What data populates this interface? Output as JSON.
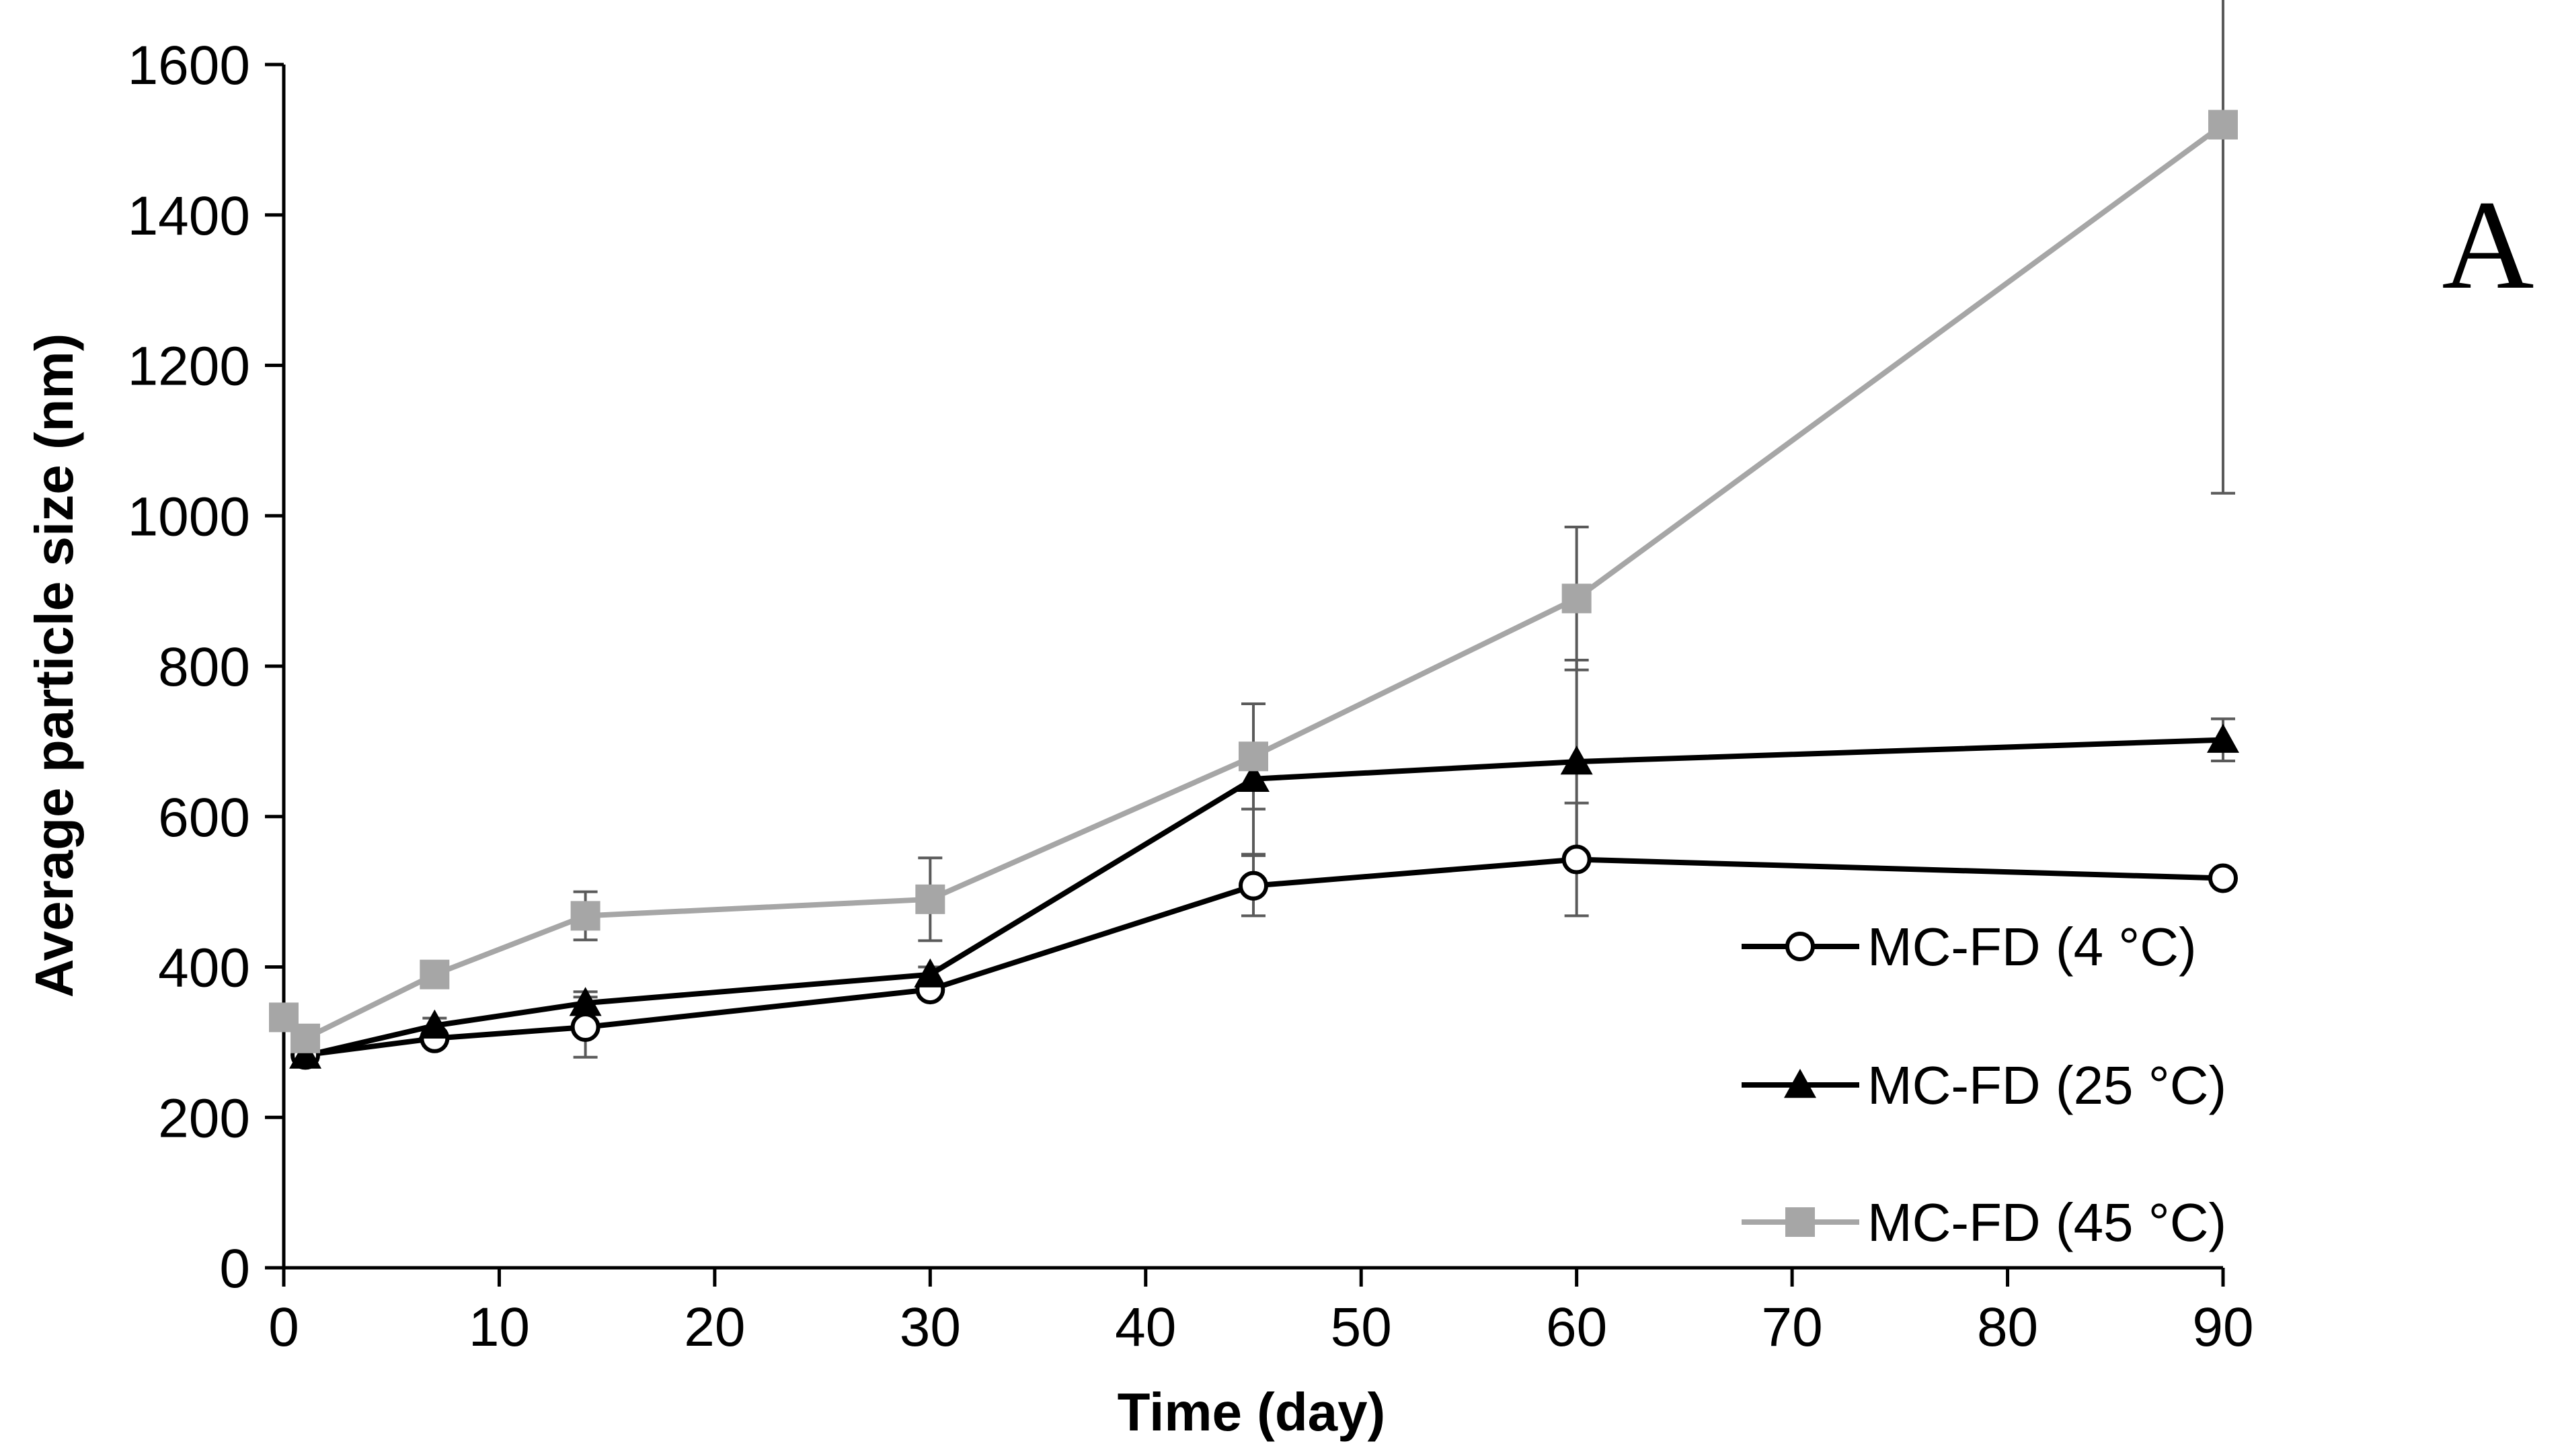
{
  "chart_data": {
    "type": "line",
    "panel_label": "A",
    "xlabel": "Time (day)",
    "ylabel": "Average particle size (nm)",
    "xlim": [
      0,
      90
    ],
    "ylim": [
      0,
      1600
    ],
    "xticks": [
      0,
      10,
      20,
      30,
      40,
      50,
      60,
      70,
      80,
      90
    ],
    "yticks": [
      0,
      200,
      400,
      600,
      800,
      1000,
      1200,
      1400,
      1600
    ],
    "grid": false,
    "legend_position": "bottom-right",
    "series": [
      {
        "name": "MC-FD (4 °C)",
        "color": "#000000",
        "marker": "circle-open",
        "x": [
          1,
          7,
          14,
          30,
          45,
          60,
          90
        ],
        "y": [
          283,
          305,
          320,
          370,
          508,
          543,
          518
        ],
        "err": [
          15,
          10,
          40,
          10,
          40,
          75,
          5
        ]
      },
      {
        "name": "MC-FD (25 °C)",
        "color": "#000000",
        "marker": "triangle",
        "x": [
          1,
          7,
          14,
          30,
          45,
          60,
          90
        ],
        "y": [
          282,
          322,
          352,
          390,
          650,
          673,
          702
        ],
        "err": [
          10,
          10,
          15,
          10,
          100,
          135,
          28
        ]
      },
      {
        "name": "MC-FD (45 °C)",
        "color": "#a6a6a6",
        "marker": "square",
        "x": [
          0,
          1,
          7,
          14,
          30,
          45,
          60,
          90
        ],
        "y": [
          333,
          305,
          390,
          468,
          490,
          680,
          890,
          1520
        ],
        "err": [
          10,
          10,
          10,
          32,
          55,
          70,
          95,
          490
        ]
      }
    ]
  }
}
